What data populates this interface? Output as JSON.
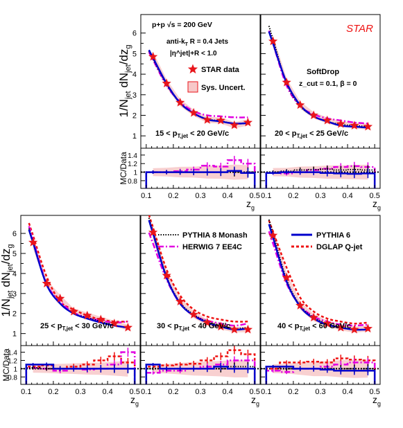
{
  "chart_data": {
    "type": "line",
    "experiment_label": "STAR",
    "system_label": "p+p √s = 200 GeV",
    "jet_label_1": "anti-k",
    "jet_label_1_sub": "T",
    "jet_label_1_rest": " R = 0.4 Jets",
    "jet_label_2": "|η^jet|+R < 1.0",
    "softdrop_label": "SoftDrop",
    "softdrop_params": "z_cut = 0.1, β = 0",
    "ylabel_main": "1/N_jet dN_jet/dz_g",
    "ylabel_ratio": "MC/Data",
    "xlabel": "z_g",
    "xlim": [
      0.08,
      0.52
    ],
    "ylim_main": [
      0.4,
      6.9
    ],
    "ylim_ratio": [
      0.62,
      1.56
    ],
    "x_ticks": [
      "0.1",
      "0.2",
      "0.3",
      "0.4",
      "0.5"
    ],
    "y_ticks_main": [
      "1",
      "2",
      "3",
      "4",
      "5",
      "6"
    ],
    "y_ticks_ratio": [
      "0.8",
      "1",
      "1.2",
      "1.4"
    ],
    "legend": {
      "data": "STAR data",
      "sys": "Sys. Uncert.",
      "pythia8": "PYTHIA 8 Monash",
      "herwig": "HERWIG 7 EE4C",
      "pythia6": "PYTHIA 6",
      "dglap": "DGLAP Q-jet"
    },
    "colors": {
      "data": "#e8151b",
      "sys": "#f7c8c8",
      "pythia8": "#000000",
      "herwig": "#e100e1",
      "pythia6": "#0000cc",
      "dglap": "#ee1111",
      "experiment": "#ee1111"
    },
    "x": [
      0.125,
      0.175,
      0.225,
      0.275,
      0.325,
      0.375,
      0.425,
      0.475
    ],
    "panels": [
      {
        "label": "15 < p_T,jet < 20 GeV/c",
        "data": [
          4.85,
          3.55,
          2.62,
          2.12,
          1.78,
          1.75,
          1.52,
          1.65
        ],
        "sys_band": [
          0.25,
          0.2,
          0.18,
          0.15,
          0.15,
          0.15,
          0.15,
          0.15
        ],
        "pythia8": [
          4.75,
          3.5,
          2.6,
          2.1,
          1.82,
          1.72,
          1.6,
          1.6
        ],
        "herwig": [
          4.7,
          3.45,
          2.65,
          2.2,
          2.0,
          1.95,
          1.9,
          1.9
        ],
        "pythia6": [
          4.8,
          3.55,
          2.6,
          2.1,
          1.8,
          1.7,
          1.6,
          1.62
        ],
        "dglap": null,
        "ratio_pythia6": [
          1.0,
          1.0,
          1.0,
          1.0,
          1.0,
          1.0,
          1.03,
          0.98
        ],
        "ratio_pythia8": [
          1.0,
          1.0,
          1.0,
          1.0,
          1.0,
          1.0,
          1.0,
          1.0
        ],
        "ratio_herwig": [
          1.0,
          1.0,
          1.02,
          1.06,
          1.15,
          1.13,
          1.28,
          1.2
        ],
        "ratio_dglap": null
      },
      {
        "label": "20 < p_T,jet < 25 GeV/c",
        "data": [
          5.6,
          3.6,
          2.5,
          2.0,
          1.75,
          1.58,
          1.5,
          1.45
        ],
        "sys_band": [
          0.3,
          0.2,
          0.18,
          0.15,
          0.15,
          0.14,
          0.14,
          0.14
        ],
        "pythia8": [
          5.7,
          3.55,
          2.45,
          1.95,
          1.7,
          1.55,
          1.5,
          1.45
        ],
        "herwig": [
          5.5,
          3.45,
          2.45,
          2.05,
          1.85,
          1.75,
          1.65,
          1.6
        ],
        "pythia6": [
          5.5,
          3.6,
          2.5,
          1.95,
          1.7,
          1.5,
          1.45,
          1.4
        ],
        "dglap": null,
        "ratio_pythia6": [
          0.98,
          1.0,
          1.0,
          1.0,
          0.98,
          0.97,
          0.96,
          0.97
        ],
        "ratio_pythia8": [
          1.0,
          1.02,
          1.05,
          1.06,
          1.07,
          1.05,
          1.06,
          1.05
        ],
        "ratio_herwig": [
          0.98,
          0.97,
          1.0,
          1.05,
          1.08,
          1.12,
          1.14,
          1.12
        ],
        "ratio_dglap": null
      },
      {
        "label": "25 < p_T,jet < 30 GeV/c",
        "data": [
          5.55,
          3.5,
          2.75,
          2.1,
          1.9,
          1.7,
          1.5,
          1.3
        ],
        "sys_band": [
          0.3,
          0.2,
          0.18,
          0.15,
          0.15,
          0.14,
          0.14,
          0.14
        ],
        "pythia8": [
          5.6,
          3.45,
          2.5,
          2.0,
          1.8,
          1.6,
          1.4,
          1.3
        ],
        "herwig": [
          5.7,
          3.5,
          2.6,
          2.05,
          1.8,
          1.65,
          1.55,
          1.6
        ],
        "pythia6": [
          5.55,
          3.45,
          2.5,
          2.0,
          1.75,
          1.55,
          1.4,
          1.3
        ],
        "dglap": [
          5.9,
          3.85,
          2.6,
          2.2,
          1.9,
          1.7,
          1.6,
          1.6
        ],
        "ratio_pythia6": [
          1.1,
          1.1,
          1.0,
          1.0,
          1.0,
          1.0,
          1.0,
          1.0
        ],
        "ratio_pythia8": [
          1.02,
          1.0,
          1.0,
          1.0,
          1.0,
          1.0,
          1.0,
          1.0
        ],
        "ratio_herwig": [
          1.02,
          1.0,
          0.95,
          1.0,
          0.98,
          1.0,
          1.1,
          1.4
        ],
        "ratio_dglap": [
          1.05,
          1.08,
          1.0,
          1.05,
          1.1,
          1.2,
          1.3,
          1.15
        ]
      },
      {
        "label": "30 < p_T,jet < 40 GeV/c",
        "data": [
          6.05,
          3.9,
          2.6,
          1.95,
          1.55,
          1.35,
          1.2,
          1.2
        ],
        "sys_band": [
          0.35,
          0.25,
          0.2,
          0.18,
          0.15,
          0.14,
          0.14,
          0.14
        ],
        "pythia8": [
          6.1,
          3.85,
          2.55,
          1.95,
          1.6,
          1.4,
          1.25,
          1.3
        ],
        "herwig": [
          5.5,
          3.7,
          2.5,
          1.9,
          1.65,
          1.5,
          1.4,
          1.5
        ],
        "pythia6": [
          6.0,
          3.8,
          2.5,
          1.9,
          1.55,
          1.35,
          1.2,
          1.25
        ],
        "dglap": [
          6.3,
          4.2,
          2.9,
          2.2,
          1.85,
          1.7,
          1.6,
          1.6
        ],
        "ratio_pythia6": [
          1.1,
          1.0,
          1.0,
          1.0,
          1.0,
          1.05,
          1.0,
          1.0
        ],
        "ratio_pythia8": [
          1.0,
          1.0,
          1.0,
          1.0,
          1.0,
          1.0,
          1.05,
          1.05
        ],
        "ratio_herwig": [
          0.9,
          0.95,
          0.95,
          1.0,
          1.05,
          1.1,
          1.2,
          1.2
        ],
        "ratio_dglap": [
          1.05,
          1.08,
          1.1,
          1.12,
          1.2,
          1.3,
          1.45,
          1.35
        ]
      },
      {
        "label": "40 < p_T,jet < 60 GeV/c",
        "data": [
          5.9,
          3.8,
          2.4,
          1.8,
          1.5,
          1.3,
          1.2,
          1.25
        ],
        "sys_band": [
          0.35,
          0.25,
          0.2,
          0.18,
          0.15,
          0.15,
          0.15,
          0.15
        ],
        "pythia8": [
          6.0,
          3.7,
          2.4,
          1.8,
          1.5,
          1.3,
          1.2,
          1.2
        ],
        "herwig": [
          5.5,
          3.5,
          2.4,
          1.85,
          1.6,
          1.45,
          1.4,
          1.45
        ],
        "pythia6": [
          5.8,
          3.6,
          2.35,
          1.75,
          1.45,
          1.3,
          1.2,
          1.2
        ],
        "dglap": [
          6.1,
          4.3,
          2.8,
          2.1,
          1.75,
          1.6,
          1.5,
          1.55
        ],
        "ratio_pythia6": [
          1.05,
          1.05,
          1.0,
          1.0,
          0.98,
          0.95,
          0.95,
          0.95
        ],
        "ratio_pythia8": [
          1.05,
          1.0,
          1.0,
          1.0,
          1.0,
          1.0,
          1.0,
          1.0
        ],
        "ratio_herwig": [
          0.95,
          0.92,
          1.0,
          1.0,
          1.05,
          1.1,
          1.15,
          1.15
        ],
        "ratio_dglap": [
          1.0,
          1.15,
          1.15,
          1.17,
          1.15,
          1.25,
          1.22,
          1.2
        ]
      }
    ]
  }
}
